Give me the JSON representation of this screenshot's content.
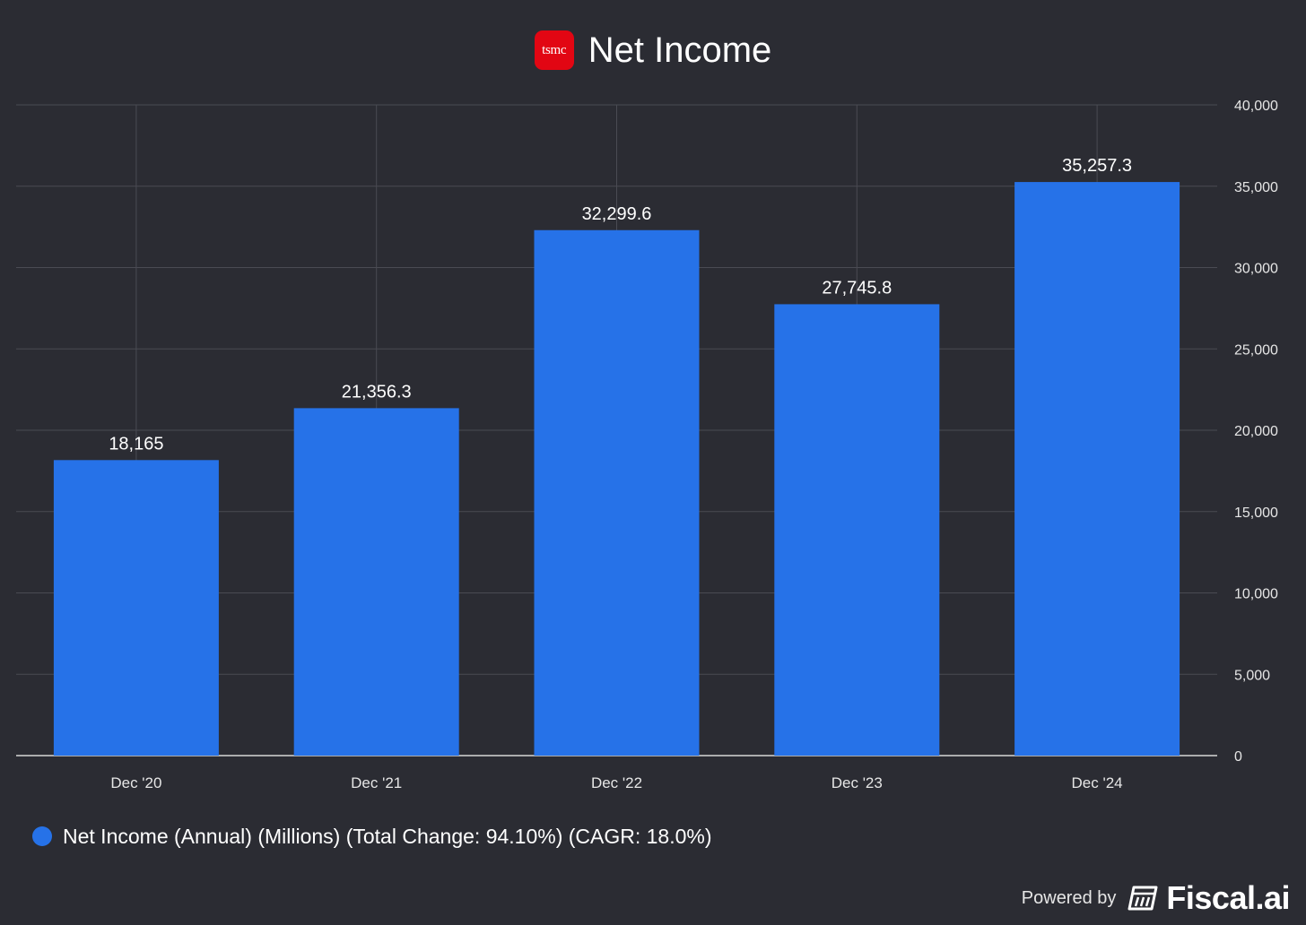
{
  "header": {
    "logo_text": "tsmc",
    "title": "Net Income"
  },
  "chart_data": {
    "type": "bar",
    "title": "Net Income",
    "categories": [
      "Dec '20",
      "Dec '21",
      "Dec '22",
      "Dec '23",
      "Dec '24"
    ],
    "values": [
      18165,
      21356.3,
      32299.6,
      27745.8,
      35257.3
    ],
    "value_labels": [
      "18,165",
      "21,356.3",
      "32,299.6",
      "27,745.8",
      "35,257.3"
    ],
    "ylim": [
      0,
      40000
    ],
    "yticks": [
      0,
      5000,
      10000,
      15000,
      20000,
      25000,
      30000,
      35000,
      40000
    ],
    "ytick_labels": [
      "0",
      "5,000",
      "10,000",
      "15,000",
      "20,000",
      "25,000",
      "30,000",
      "35,000",
      "40,000"
    ],
    "y_axis_side": "right",
    "grid": true,
    "bar_color": "#2672e8",
    "legend": {
      "placement": "bottom-left",
      "entry": "Net Income (Annual) (Millions) (Total Change: 94.10%) (CAGR: 18.0%)"
    }
  },
  "footer": {
    "powered_by": "Powered by",
    "brand": "Fiscal.ai"
  }
}
